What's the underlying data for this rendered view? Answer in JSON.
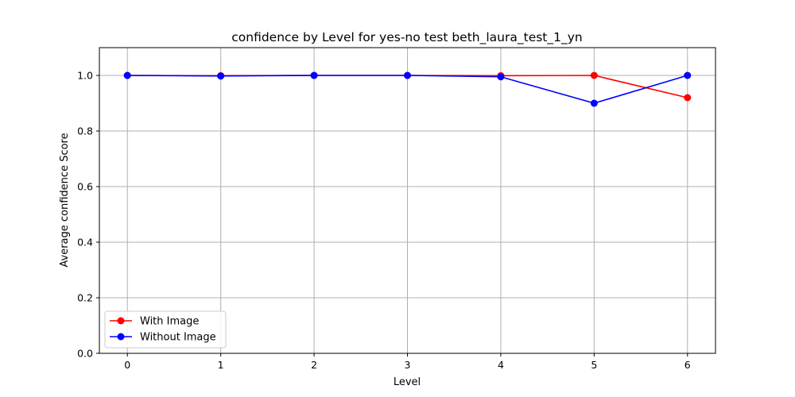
{
  "chart_data": {
    "type": "line",
    "title": "confidence by Level for yes-no test beth_laura_test_1_yn",
    "xlabel": "Level",
    "ylabel": "Average confidence Score",
    "x": [
      0,
      1,
      2,
      3,
      4,
      5,
      6
    ],
    "xlim": [
      -0.3,
      6.3
    ],
    "ylim": [
      0.0,
      1.1
    ],
    "xticks": [
      "0",
      "1",
      "2",
      "3",
      "4",
      "5",
      "6"
    ],
    "yticks": [
      "0.0",
      "0.2",
      "0.4",
      "0.6",
      "0.8",
      "1.0"
    ],
    "grid": true,
    "legend_position": "lower-left",
    "series": [
      {
        "name": "With Image",
        "color": "#ff0000",
        "values": [
          1.0,
          0.999,
          1.0,
          1.0,
          0.999,
          1.0,
          0.92
        ]
      },
      {
        "name": "Without Image",
        "color": "#0000ff",
        "values": [
          1.0,
          0.998,
          1.0,
          1.0,
          0.995,
          0.9,
          1.0
        ]
      }
    ]
  }
}
